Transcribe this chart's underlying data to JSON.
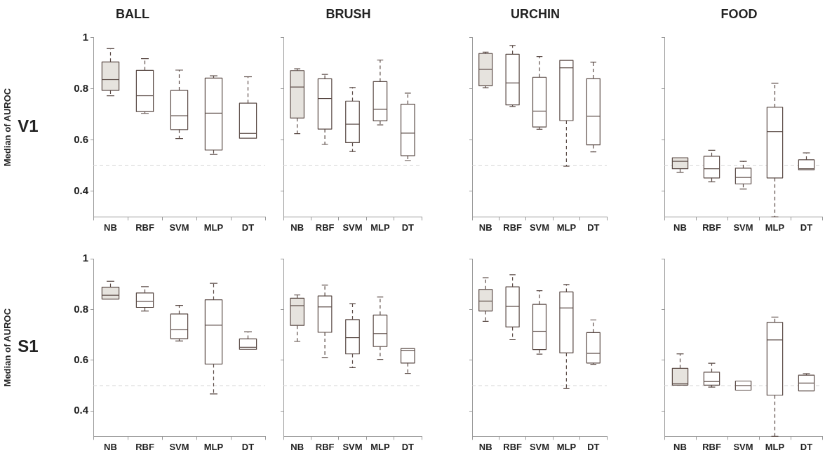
{
  "chart_data": [
    {
      "type": "box",
      "title": "BALL",
      "ylabel": "Median of AUROC",
      "annotations": [
        "V1"
      ],
      "categories": [
        "NB",
        "RBF",
        "SVM",
        "MLP",
        "DT"
      ],
      "color": "#5a4a45",
      "colors": [
        "#e6e3de",
        "#ffffff",
        "#ffffff",
        "#ffffff",
        "#ffffff"
      ],
      "ylim": [
        0.3,
        1
      ],
      "yticks": [
        0.4,
        0.6,
        0.8,
        1
      ],
      "ref_lines": [
        {
          "axis": "y",
          "value": 0.5,
          "color": "#d4d4d4",
          "line_style": "dashed"
        }
      ],
      "line_style": "dashed",
      "boxes": [
        {
          "low": 0.773,
          "q1": 0.794,
          "median": 0.836,
          "q3": 0.905,
          "high": 0.957
        },
        {
          "low": 0.704,
          "q1": 0.711,
          "median": 0.773,
          "q3": 0.872,
          "high": 0.918
        },
        {
          "low": 0.606,
          "q1": 0.641,
          "median": 0.695,
          "q3": 0.794,
          "high": 0.873
        },
        {
          "low": 0.544,
          "q1": 0.561,
          "median": 0.705,
          "q3": 0.842,
          "high": 0.851
        },
        {
          "low": 0.607,
          "q1": 0.607,
          "median": 0.626,
          "q3": 0.744,
          "high": 0.847
        }
      ]
    },
    {
      "type": "box",
      "title": "BRUSH",
      "categories": [
        "NB",
        "RBF",
        "SVM",
        "MLP",
        "DT"
      ],
      "color": "#5a4a45",
      "colors": [
        "#e6e3de",
        "#ffffff",
        "#ffffff",
        "#ffffff",
        "#ffffff"
      ],
      "ylim": [
        0.3,
        1
      ],
      "yticks": [
        0.4,
        0.6,
        0.8,
        1
      ],
      "tick_labels": "x",
      "ref_lines": [
        {
          "axis": "y",
          "value": 0.5,
          "color": "#d4d4d4",
          "line_style": "dashed"
        }
      ],
      "line_style": "dashed",
      "boxes": [
        {
          "low": 0.625,
          "q1": 0.686,
          "median": 0.807,
          "q3": 0.871,
          "high": 0.878
        },
        {
          "low": 0.583,
          "q1": 0.643,
          "median": 0.762,
          "q3": 0.839,
          "high": 0.856
        },
        {
          "low": 0.555,
          "q1": 0.59,
          "median": 0.662,
          "q3": 0.752,
          "high": 0.805
        },
        {
          "low": 0.659,
          "q1": 0.675,
          "median": 0.72,
          "q3": 0.828,
          "high": 0.912
        },
        {
          "low": 0.52,
          "q1": 0.539,
          "median": 0.627,
          "q3": 0.74,
          "high": 0.783
        }
      ]
    },
    {
      "type": "box",
      "title": "URCHIN",
      "categories": [
        "NB",
        "RBF",
        "SVM",
        "MLP",
        "DT"
      ],
      "color": "#5a4a45",
      "colors": [
        "#e6e3de",
        "#ffffff",
        "#ffffff",
        "#ffffff",
        "#ffffff"
      ],
      "ylim": [
        0.3,
        1
      ],
      "yticks": [
        0.4,
        0.6,
        0.8,
        1
      ],
      "tick_labels": "x",
      "ref_lines": [
        {
          "axis": "y",
          "value": 0.5,
          "color": "#d4d4d4",
          "line_style": "dashed"
        }
      ],
      "line_style": "dashed",
      "boxes": [
        {
          "low": 0.804,
          "q1": 0.812,
          "median": 0.876,
          "q3": 0.938,
          "high": 0.943
        },
        {
          "low": 0.731,
          "q1": 0.737,
          "median": 0.823,
          "q3": 0.935,
          "high": 0.969
        },
        {
          "low": 0.642,
          "q1": 0.651,
          "median": 0.713,
          "q3": 0.845,
          "high": 0.926
        },
        {
          "low": 0.498,
          "q1": 0.676,
          "median": 0.882,
          "q3": 0.911,
          "high": 0.911
        },
        {
          "low": 0.554,
          "q1": 0.581,
          "median": 0.693,
          "q3": 0.84,
          "high": 0.904
        }
      ]
    },
    {
      "type": "box",
      "title": "FOOD",
      "categories": [
        "NB",
        "RBF",
        "SVM",
        "MLP",
        "DT"
      ],
      "color": "#5a4a45",
      "colors": [
        "#e6e3de",
        "#ffffff",
        "#ffffff",
        "#ffffff",
        "#ffffff"
      ],
      "ylim": [
        0.3,
        1
      ],
      "yticks": [
        0.4,
        0.6,
        0.8,
        1
      ],
      "tick_labels": "x",
      "ref_lines": [
        {
          "axis": "y",
          "value": 0.5,
          "color": "#d4d4d4",
          "line_style": "dashed"
        }
      ],
      "line_style": "dashed",
      "boxes": [
        {
          "low": 0.474,
          "q1": 0.488,
          "median": 0.517,
          "q3": 0.531,
          "high": 0.531
        },
        {
          "low": 0.437,
          "q1": 0.452,
          "median": 0.488,
          "q3": 0.537,
          "high": 0.56
        },
        {
          "low": 0.409,
          "q1": 0.429,
          "median": 0.454,
          "q3": 0.49,
          "high": 0.517
        },
        {
          "low": 0.3,
          "q1": 0.452,
          "median": 0.633,
          "q3": 0.728,
          "high": 0.822
        },
        {
          "low": 0.484,
          "q1": 0.484,
          "median": 0.488,
          "q3": 0.523,
          "high": 0.55
        }
      ]
    },
    {
      "type": "box",
      "ylabel": "Median of AUROC",
      "annotations": [
        "S1"
      ],
      "categories": [
        "NB",
        "RBF",
        "SVM",
        "MLP",
        "DT"
      ],
      "color": "#5a4a45",
      "colors": [
        "#e6e3de",
        "#ffffff",
        "#ffffff",
        "#ffffff",
        "#ffffff"
      ],
      "ylim": [
        0.3,
        1
      ],
      "yticks": [
        0.4,
        0.6,
        0.8,
        1
      ],
      "ref_lines": [
        {
          "axis": "y",
          "value": 0.5,
          "color": "#d4d4d4",
          "line_style": "dashed"
        }
      ],
      "line_style": "dashed",
      "boxes": [
        {
          "low": 0.841,
          "q1": 0.841,
          "median": 0.856,
          "q3": 0.888,
          "high": 0.911
        },
        {
          "low": 0.794,
          "q1": 0.808,
          "median": 0.832,
          "q3": 0.865,
          "high": 0.89
        },
        {
          "low": 0.676,
          "q1": 0.685,
          "median": 0.72,
          "q3": 0.782,
          "high": 0.816
        },
        {
          "low": 0.467,
          "q1": 0.585,
          "median": 0.738,
          "q3": 0.838,
          "high": 0.903
        },
        {
          "low": 0.643,
          "q1": 0.643,
          "median": 0.651,
          "q3": 0.684,
          "high": 0.712
        }
      ]
    },
    {
      "type": "box",
      "categories": [
        "NB",
        "RBF",
        "SVM",
        "MLP",
        "DT"
      ],
      "color": "#5a4a45",
      "colors": [
        "#e6e3de",
        "#ffffff",
        "#ffffff",
        "#ffffff",
        "#ffffff"
      ],
      "ylim": [
        0.3,
        1
      ],
      "yticks": [
        0.4,
        0.6,
        0.8,
        1
      ],
      "tick_labels": "x",
      "ref_lines": [
        {
          "axis": "y",
          "value": 0.5,
          "color": "#d4d4d4",
          "line_style": "dashed"
        }
      ],
      "line_style": "dashed",
      "boxes": [
        {
          "low": 0.674,
          "q1": 0.737,
          "median": 0.815,
          "q3": 0.844,
          "high": 0.857
        },
        {
          "low": 0.611,
          "q1": 0.71,
          "median": 0.81,
          "q3": 0.853,
          "high": 0.896
        },
        {
          "low": 0.571,
          "q1": 0.625,
          "median": 0.689,
          "q3": 0.76,
          "high": 0.823
        },
        {
          "low": 0.603,
          "q1": 0.654,
          "median": 0.705,
          "q3": 0.778,
          "high": 0.849
        },
        {
          "low": 0.548,
          "q1": 0.589,
          "median": 0.639,
          "q3": 0.646,
          "high": 0.646
        }
      ]
    },
    {
      "type": "box",
      "categories": [
        "NB",
        "RBF",
        "SVM",
        "MLP",
        "DT"
      ],
      "color": "#5a4a45",
      "colors": [
        "#e6e3de",
        "#ffffff",
        "#ffffff",
        "#ffffff",
        "#ffffff"
      ],
      "ylim": [
        0.3,
        1
      ],
      "yticks": [
        0.4,
        0.6,
        0.8,
        1
      ],
      "tick_labels": "x",
      "ref_lines": [
        {
          "axis": "y",
          "value": 0.5,
          "color": "#d4d4d4",
          "line_style": "dashed"
        }
      ],
      "line_style": "dashed",
      "boxes": [
        {
          "low": 0.753,
          "q1": 0.794,
          "median": 0.833,
          "q3": 0.879,
          "high": 0.925
        },
        {
          "low": 0.681,
          "q1": 0.731,
          "median": 0.812,
          "q3": 0.889,
          "high": 0.937
        },
        {
          "low": 0.624,
          "q1": 0.642,
          "median": 0.714,
          "q3": 0.82,
          "high": 0.874
        },
        {
          "low": 0.488,
          "q1": 0.629,
          "median": 0.806,
          "q3": 0.869,
          "high": 0.898
        },
        {
          "low": 0.584,
          "q1": 0.589,
          "median": 0.627,
          "q3": 0.709,
          "high": 0.759
        }
      ]
    },
    {
      "type": "box",
      "categories": [
        "NB",
        "RBF",
        "SVM",
        "MLP",
        "DT"
      ],
      "color": "#5a4a45",
      "colors": [
        "#e6e3de",
        "#ffffff",
        "#ffffff",
        "#ffffff",
        "#ffffff"
      ],
      "ylim": [
        0.3,
        1
      ],
      "yticks": [
        0.4,
        0.6,
        0.8,
        1
      ],
      "tick_labels": "x",
      "ref_lines": [
        {
          "axis": "y",
          "value": 0.5,
          "color": "#d4d4d4",
          "line_style": "dashed"
        }
      ],
      "line_style": "dashed",
      "boxes": [
        {
          "low": 0.502,
          "q1": 0.502,
          "median": 0.507,
          "q3": 0.568,
          "high": 0.625
        },
        {
          "low": 0.494,
          "q1": 0.502,
          "median": 0.516,
          "q3": 0.553,
          "high": 0.588
        },
        {
          "low": 0.482,
          "q1": 0.482,
          "median": 0.5,
          "q3": 0.518,
          "high": 0.518
        },
        {
          "low": 0.3,
          "q1": 0.462,
          "median": 0.68,
          "q3": 0.749,
          "high": 0.77
        },
        {
          "low": 0.479,
          "q1": 0.479,
          "median": 0.51,
          "q3": 0.541,
          "high": 0.547
        }
      ]
    }
  ]
}
